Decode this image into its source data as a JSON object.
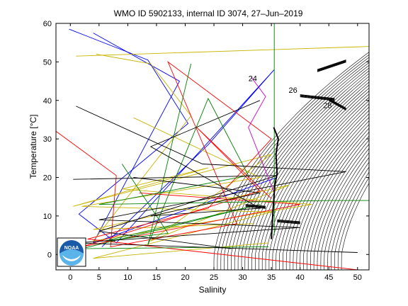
{
  "chart_data": {
    "type": "line",
    "title": "WMO ID 5902133, internal ID 3074, 27–Jun–2019",
    "xlabel": "Salinity",
    "ylabel": "Temperature [°C]",
    "xlim": [
      -2.5,
      52
    ],
    "ylim": [
      -4,
      60
    ],
    "xticks": [
      0,
      5,
      10,
      15,
      20,
      25,
      30,
      35,
      40,
      45,
      50
    ],
    "yticks": [
      0,
      10,
      20,
      30,
      40,
      50,
      60
    ],
    "grid": false,
    "logo_text": "NOAA",
    "isopycnal_labels": [
      "24",
      "26",
      "28"
    ],
    "series": [
      {
        "color": "#0000ff",
        "values": [
          [
            -0.2,
            58.5
          ],
          [
            13.5,
            50.5
          ],
          [
            20.5,
            34.0
          ],
          [
            1.5,
            10.5
          ],
          [
            8.0,
            3.0
          ],
          [
            35.5,
            48.0
          ],
          [
            24.0,
            28.5
          ],
          [
            5.5,
            2.0
          ]
        ]
      },
      {
        "color": "#0000ff",
        "values": [
          [
            4.0,
            57.5
          ],
          [
            19.0,
            45.0
          ],
          [
            4.0,
            3.0
          ],
          [
            36.0,
            20.0
          ]
        ]
      },
      {
        "color": "#c8b400",
        "values": [
          [
            1.0,
            51.5
          ],
          [
            52.0,
            54.0
          ]
        ]
      },
      {
        "color": "#c8b400",
        "values": [
          [
            4.5,
            52.0
          ],
          [
            14.0,
            49.5
          ],
          [
            21.0,
            36.0
          ],
          [
            4.0,
            3.5
          ],
          [
            42.0,
            13.0
          ],
          [
            9.0,
            17.0
          ],
          [
            24.0,
            22.5
          ],
          [
            0.5,
            12.5
          ],
          [
            35.0,
            26.0
          ],
          [
            14.0,
            3.5
          ],
          [
            38.0,
            18.0
          ],
          [
            4.0,
            6.5
          ],
          [
            32.0,
            8.0
          ]
        ]
      },
      {
        "color": "#c8b400",
        "values": [
          [
            11.0,
            35.5
          ],
          [
            33.0,
            20.0
          ],
          [
            2.0,
            12.5
          ],
          [
            35.0,
            11.0
          ],
          [
            4.0,
            -1.0
          ],
          [
            34.5,
            3.0
          ]
        ]
      },
      {
        "color": "#ff0000",
        "values": [
          [
            -2.5,
            32.0
          ],
          [
            8.0,
            20.5
          ],
          [
            7.0,
            2.0
          ],
          [
            29.0,
            8.0
          ],
          [
            17.0,
            50.0
          ],
          [
            35.0,
            30.0
          ],
          [
            24.0,
            12.0
          ],
          [
            3.0,
            4.0
          ],
          [
            50.0,
            -4.0
          ]
        ]
      },
      {
        "color": "#ff0000",
        "values": [
          [
            12.0,
            16.0
          ],
          [
            40.0,
            13.0
          ],
          [
            2.0,
            2.0
          ],
          [
            33.0,
            16.5
          ],
          [
            22.0,
            33.0
          ],
          [
            35.0,
            14.5
          ]
        ]
      },
      {
        "color": "#008000",
        "values": [
          [
            21.0,
            49.5
          ],
          [
            13.5,
            2.5
          ],
          [
            24.0,
            40.5
          ],
          [
            31.0,
            20.5
          ],
          [
            5.0,
            13.0
          ],
          [
            45.0,
            14.0
          ],
          [
            52.0,
            14.0
          ]
        ]
      },
      {
        "color": "#008000",
        "values": [
          [
            35.5,
            60.0
          ],
          [
            35.5,
            5.0
          ]
        ]
      },
      {
        "color": "#008000",
        "values": [
          [
            9.0,
            23.5
          ],
          [
            17.0,
            5.5
          ],
          [
            6.0,
            3.5
          ],
          [
            33.0,
            13.0
          ],
          [
            2.0,
            1.5
          ],
          [
            34.5,
            2.0
          ]
        ]
      },
      {
        "color": "#000000",
        "values": [
          [
            1.0,
            38.5
          ],
          [
            23.0,
            23.5
          ],
          [
            48.0,
            21.5
          ],
          [
            5.0,
            9.0
          ],
          [
            40.0,
            7.0
          ],
          [
            1.0,
            3.0
          ],
          [
            50.0,
            0.5
          ]
        ]
      },
      {
        "color": "#000000",
        "values": [
          [
            0.5,
            19.5
          ],
          [
            36.0,
            20.5
          ],
          [
            5.0,
            6.0
          ],
          [
            28.0,
            1.5
          ]
        ]
      },
      {
        "color": "#000000",
        "values": [
          [
            11.0,
            20.0
          ],
          [
            33.0,
            16.0
          ],
          [
            14.0,
            10.0
          ],
          [
            33.0,
            12.0
          ],
          [
            14.0,
            28.0
          ],
          [
            33.0,
            40.0
          ]
        ]
      },
      {
        "color": "#cc00cc",
        "values": [
          [
            31.5,
            46.0
          ],
          [
            34.0,
            41.0
          ],
          [
            31.0,
            33.0
          ],
          [
            35.5,
            16.0
          ]
        ]
      }
    ]
  }
}
